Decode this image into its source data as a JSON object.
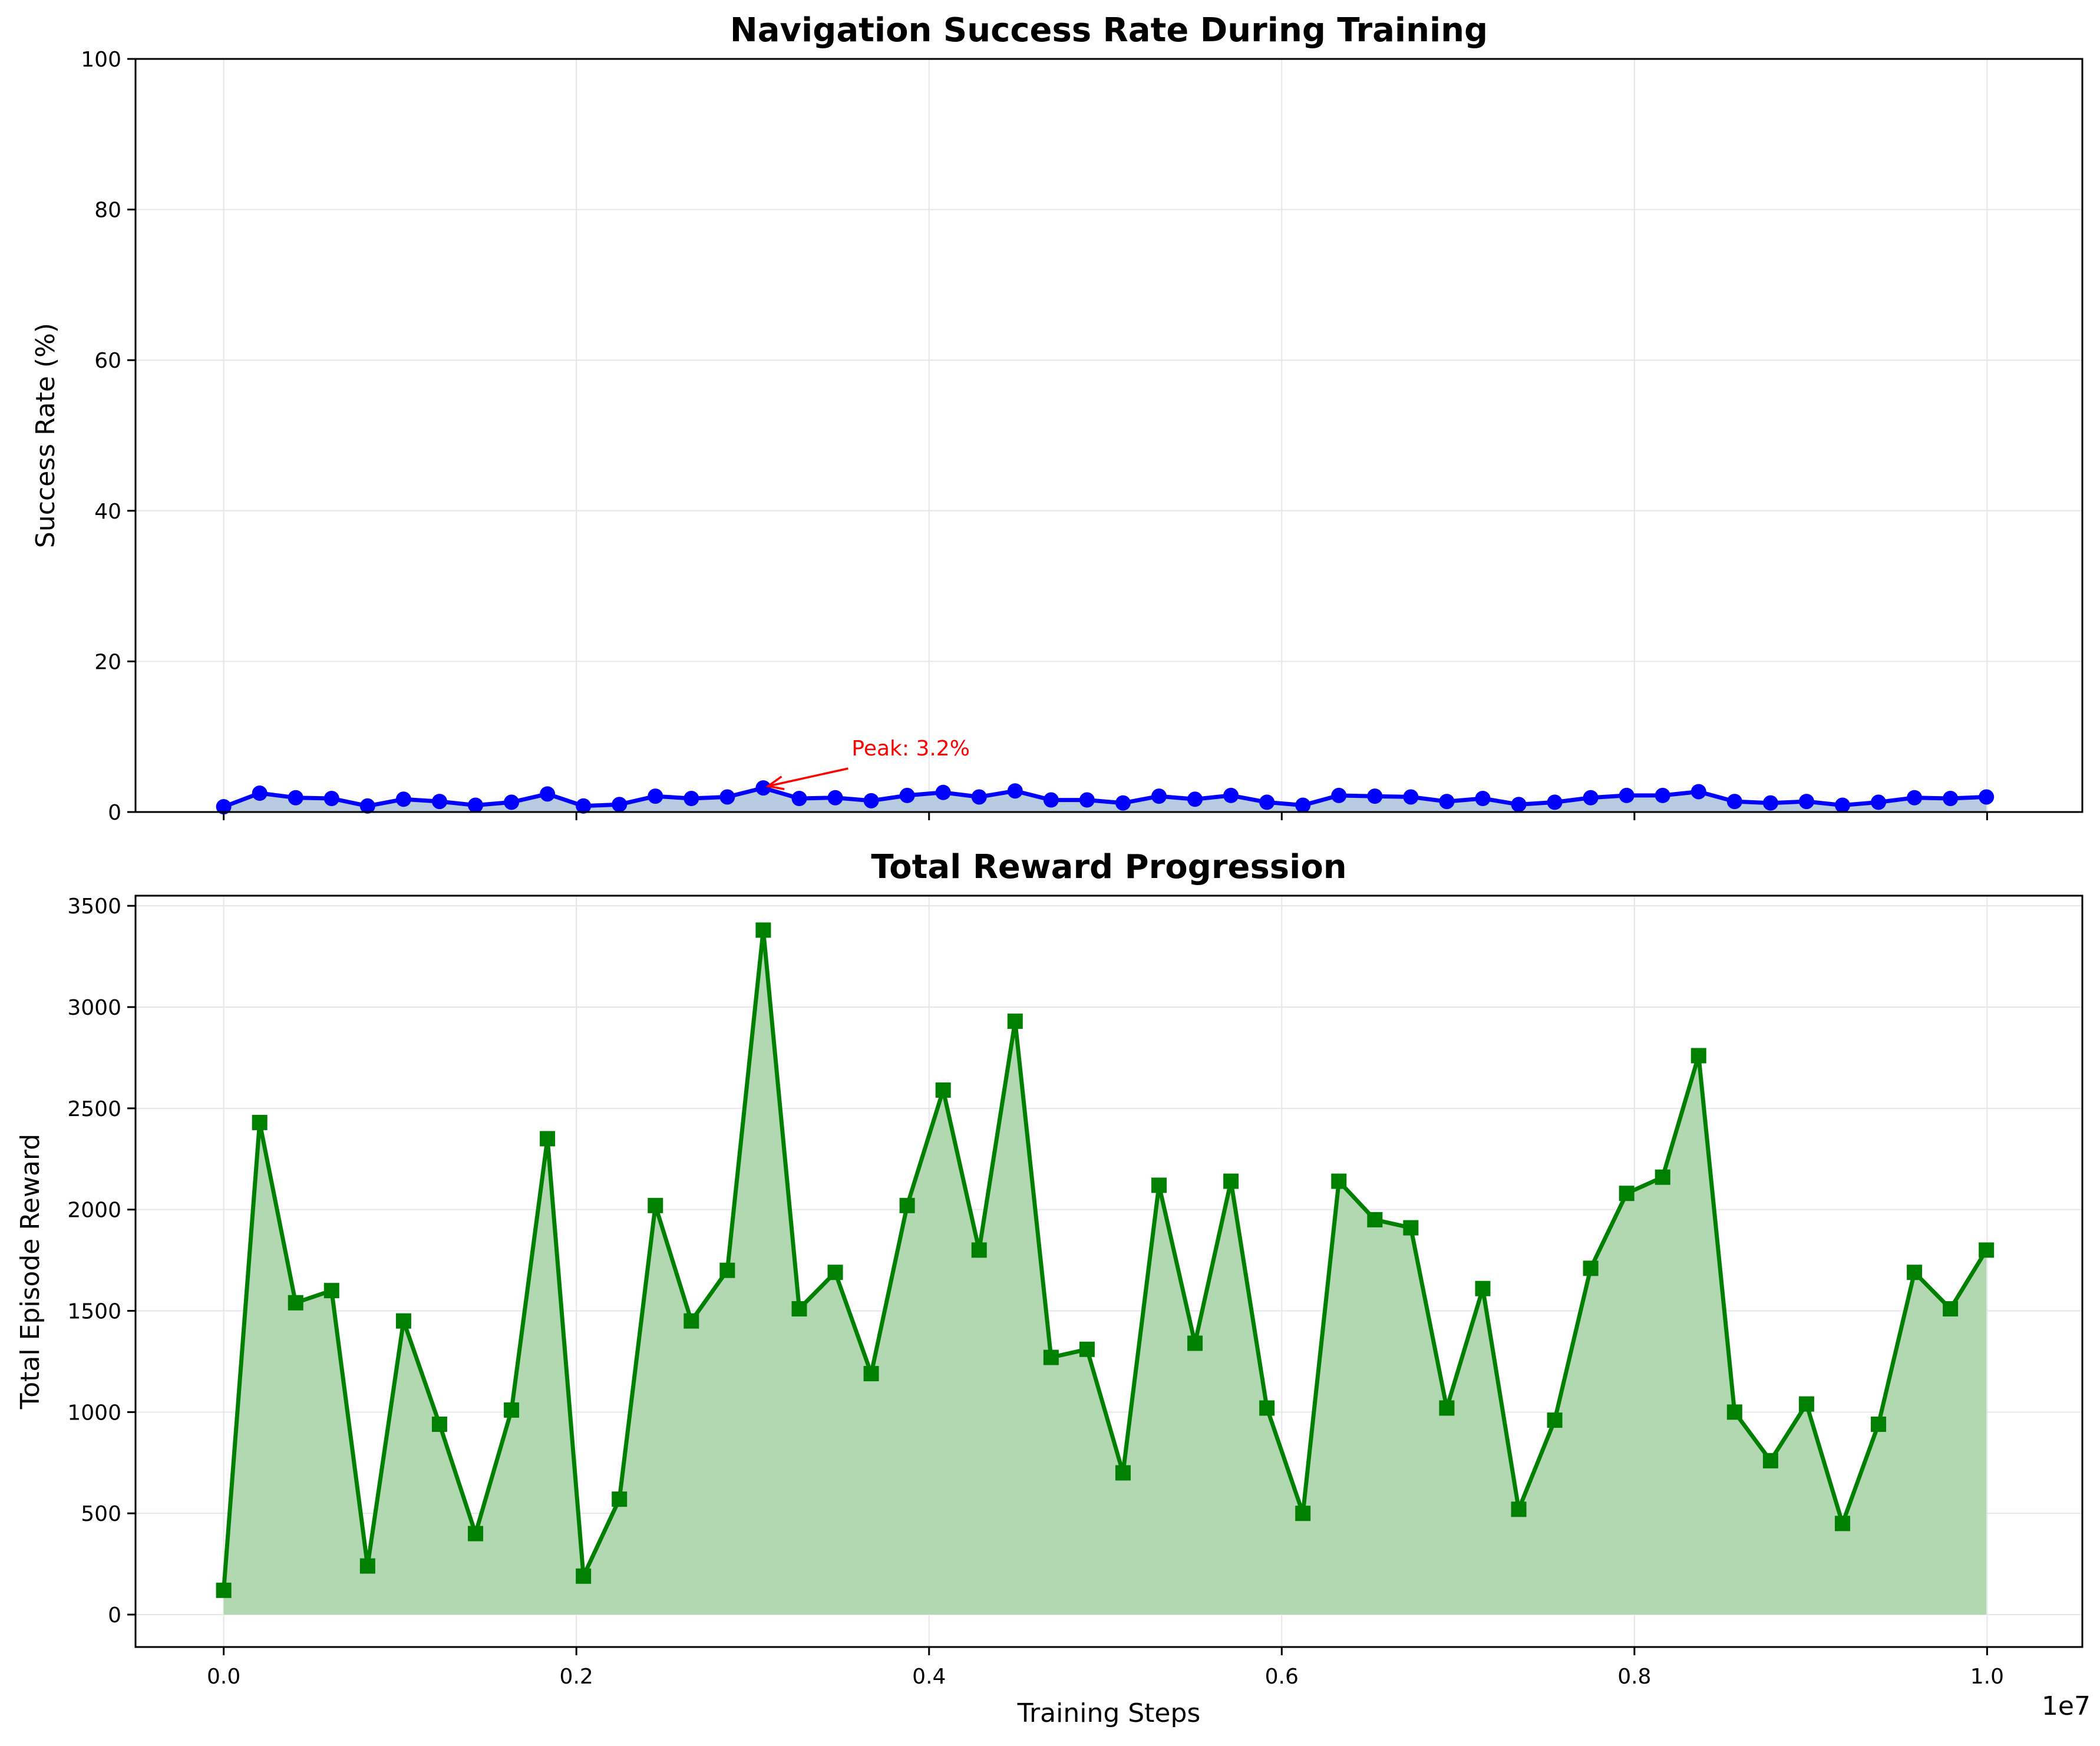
{
  "chart_data": [
    {
      "type": "line",
      "title": "Navigation Success Rate During Training",
      "xlabel": "",
      "ylabel": "Success Rate (%)",
      "xlim": [
        -500000,
        10540000
      ],
      "ylim": [
        0,
        100
      ],
      "yticks": [
        0,
        20,
        40,
        60,
        80,
        100
      ],
      "grid": true,
      "fill_under": true,
      "marker": "circle",
      "colors": {
        "line": "#0000ff",
        "fill": "#b7cce0"
      },
      "annotation": {
        "text": "Peak: 3.2%",
        "x": 3060000,
        "y": 3.2,
        "color": "#ff0000"
      },
      "series": [
        {
          "x": [
            0,
            204000,
            408000,
            612000,
            816000,
            1020000,
            1224000,
            1428000,
            1632000,
            1836000,
            2040000,
            2244000,
            2448000,
            2652000,
            2856000,
            3060000,
            3264000,
            3468000,
            3672000,
            3876000,
            4080000,
            4284000,
            4488000,
            4692000,
            4896000,
            5100000,
            5304000,
            5508000,
            5712000,
            5916000,
            6120000,
            6324000,
            6528000,
            6732000,
            6936000,
            7140000,
            7344000,
            7548000,
            7752000,
            7956000,
            8160000,
            8364000,
            8568000,
            8772000,
            8976000,
            9180000,
            9384000,
            9588000,
            9792000,
            9996000
          ],
          "values": [
            0.7,
            2.5,
            1.9,
            1.8,
            0.8,
            1.7,
            1.4,
            0.9,
            1.3,
            2.4,
            0.8,
            1.0,
            2.1,
            1.8,
            2.0,
            3.2,
            1.8,
            1.9,
            1.5,
            2.2,
            2.6,
            2.0,
            2.8,
            1.6,
            1.6,
            1.2,
            2.1,
            1.7,
            2.2,
            1.3,
            0.9,
            2.2,
            2.1,
            2.0,
            1.4,
            1.8,
            1.0,
            1.3,
            1.9,
            2.2,
            2.2,
            2.7,
            1.4,
            1.2,
            1.4,
            0.9,
            1.3,
            1.9,
            1.8,
            2.0
          ]
        }
      ]
    },
    {
      "type": "area",
      "title": "Total Reward Progression",
      "xlabel": "Training Steps",
      "ylabel": "Total Episode Reward",
      "x_offset_label": "1e7",
      "xlim": [
        -500000,
        10540000
      ],
      "ylim": [
        -160,
        3550
      ],
      "xticks": [
        0,
        2000000,
        4000000,
        6000000,
        8000000,
        10000000
      ],
      "xtick_labels": [
        "0.0",
        "0.2",
        "0.4",
        "0.6",
        "0.8",
        "1.0"
      ],
      "yticks": [
        0,
        500,
        1000,
        1500,
        2000,
        2500,
        3000,
        3500
      ],
      "grid": true,
      "fill_under": true,
      "marker": "square",
      "colors": {
        "line": "#008000",
        "fill": "#b2d8b2"
      },
      "series": [
        {
          "x": [
            0,
            204000,
            408000,
            612000,
            816000,
            1020000,
            1224000,
            1428000,
            1632000,
            1836000,
            2040000,
            2244000,
            2448000,
            2652000,
            2856000,
            3060000,
            3264000,
            3468000,
            3672000,
            3876000,
            4080000,
            4284000,
            4488000,
            4692000,
            4896000,
            5100000,
            5304000,
            5508000,
            5712000,
            5916000,
            6120000,
            6324000,
            6528000,
            6732000,
            6936000,
            7140000,
            7344000,
            7548000,
            7752000,
            7956000,
            8160000,
            8364000,
            8568000,
            8772000,
            8976000,
            9180000,
            9384000,
            9588000,
            9792000,
            9996000
          ],
          "values": [
            120,
            2430,
            1540,
            1600,
            240,
            1450,
            940,
            400,
            1010,
            2350,
            190,
            570,
            2020,
            1450,
            1700,
            3380,
            1510,
            1690,
            1190,
            2020,
            2590,
            1800,
            2930,
            1270,
            1310,
            700,
            2120,
            1340,
            2140,
            1020,
            500,
            2140,
            1950,
            1910,
            1020,
            1610,
            520,
            960,
            1710,
            2080,
            2160,
            2760,
            1000,
            760,
            1040,
            450,
            940,
            1690,
            1510,
            1800
          ]
        }
      ]
    }
  ]
}
